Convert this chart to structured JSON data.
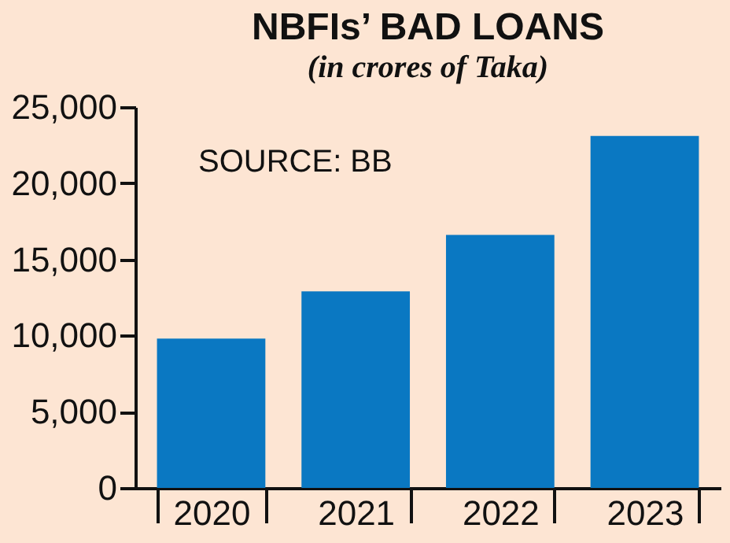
{
  "chart_data": {
    "type": "bar",
    "title": "NBFIs’ BAD LOANS",
    "subtitle": "(in crores of Taka)",
    "categories": [
      "2020",
      "2021",
      "2022",
      "2023"
    ],
    "values": [
      9800,
      12900,
      16600,
      23100
    ],
    "color": "#0a78c2",
    "ylim": [
      0,
      25000
    ],
    "yticks": [
      {
        "value": 0,
        "label": "0"
      },
      {
        "value": 5000,
        "label": "5,000"
      },
      {
        "value": 10000,
        "label": "10,000"
      },
      {
        "value": 15000,
        "label": "15,000"
      },
      {
        "value": 20000,
        "label": "20,000"
      },
      {
        "value": 25000,
        "label": "25,000"
      }
    ],
    "annotations": [
      "SOURCE: BB"
    ]
  }
}
